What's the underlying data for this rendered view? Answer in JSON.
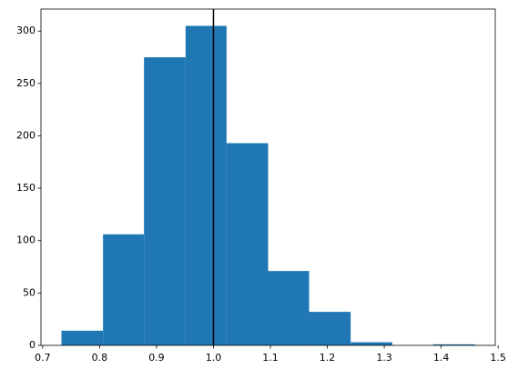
{
  "chart_data": {
    "type": "histogram",
    "bins": [
      0.733,
      0.806,
      0.878,
      0.951,
      1.023,
      1.096,
      1.168,
      1.241,
      1.314,
      1.386,
      1.459
    ],
    "values": [
      14,
      106,
      275,
      305,
      193,
      71,
      32,
      3,
      0,
      1
    ],
    "color": "#1f77b4",
    "vline": 1.0,
    "vline_color": "#000000",
    "xlim": [
      0.697,
      1.495
    ],
    "xticks": [
      0.7,
      0.8,
      0.9,
      {
        "value": 1.0,
        "label": "1.0"
      },
      1.1,
      1.2,
      1.3,
      1.4,
      1.5
    ],
    "ylim": [
      0,
      321
    ],
    "yticks": [
      0,
      50,
      100,
      150,
      200,
      250,
      300
    ]
  }
}
